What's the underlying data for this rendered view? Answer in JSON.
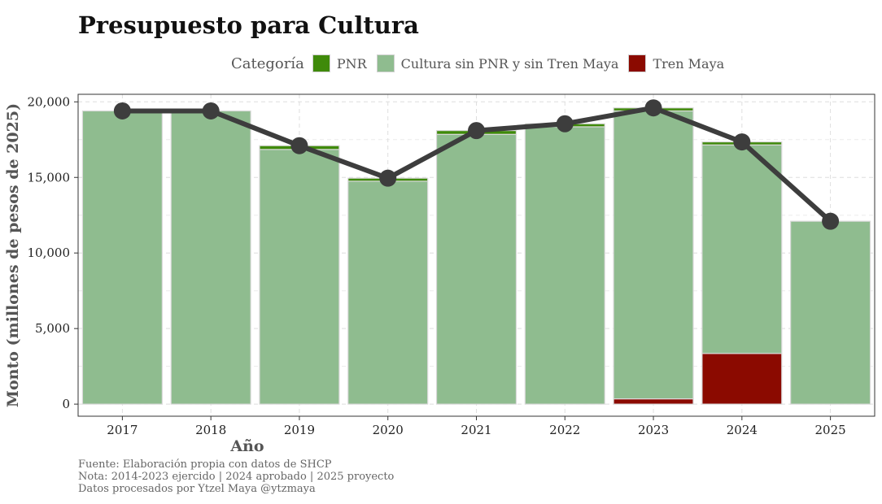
{
  "chart_data": {
    "type": "bar",
    "title": "Presupuesto para Cultura",
    "xlabel": "Año",
    "ylabel": "Monto (millones de pesos de 2025)",
    "legend_title": "Categoría",
    "legend_position": "top",
    "categories": [
      "2017",
      "2018",
      "2019",
      "2020",
      "2021",
      "2022",
      "2023",
      "2024",
      "2025"
    ],
    "stack_order": [
      "Tren Maya",
      "Cultura sin PNR y sin Tren Maya",
      "PNR"
    ],
    "series": [
      {
        "name": "PNR",
        "color": "#3f8a0a",
        "values": [
          0,
          0,
          250,
          200,
          250,
          200,
          200,
          200,
          0
        ]
      },
      {
        "name": "Cultura sin PNR y sin Tren Maya",
        "color": "#8fbc8f",
        "values": [
          19400,
          19400,
          16850,
          14750,
          17850,
          18350,
          19050,
          13800,
          12100
        ]
      },
      {
        "name": "Tren Maya",
        "color": "#8b0a00",
        "values": [
          0,
          0,
          0,
          0,
          0,
          0,
          350,
          3350,
          0
        ]
      }
    ],
    "total_line": {
      "color": "#3d3d3d",
      "values": [
        19400,
        19400,
        17100,
        14950,
        18100,
        18550,
        19600,
        17350,
        12100
      ]
    },
    "ylim": [
      -800,
      20500
    ],
    "yticks": [
      0,
      5000,
      10000,
      15000,
      20000
    ],
    "ytick_labels": [
      "0",
      "5,000",
      "10,000",
      "15,000",
      "20,000"
    ],
    "grid": true
  },
  "caption": {
    "line1": "Fuente: Elaboración propia con datos de SHCP",
    "line2": "Nota: 2014-2023 ejercido | 2024 aprobado | 2025 proyecto",
    "line3": "Datos procesados por Ytzel Maya @ytzmaya"
  }
}
